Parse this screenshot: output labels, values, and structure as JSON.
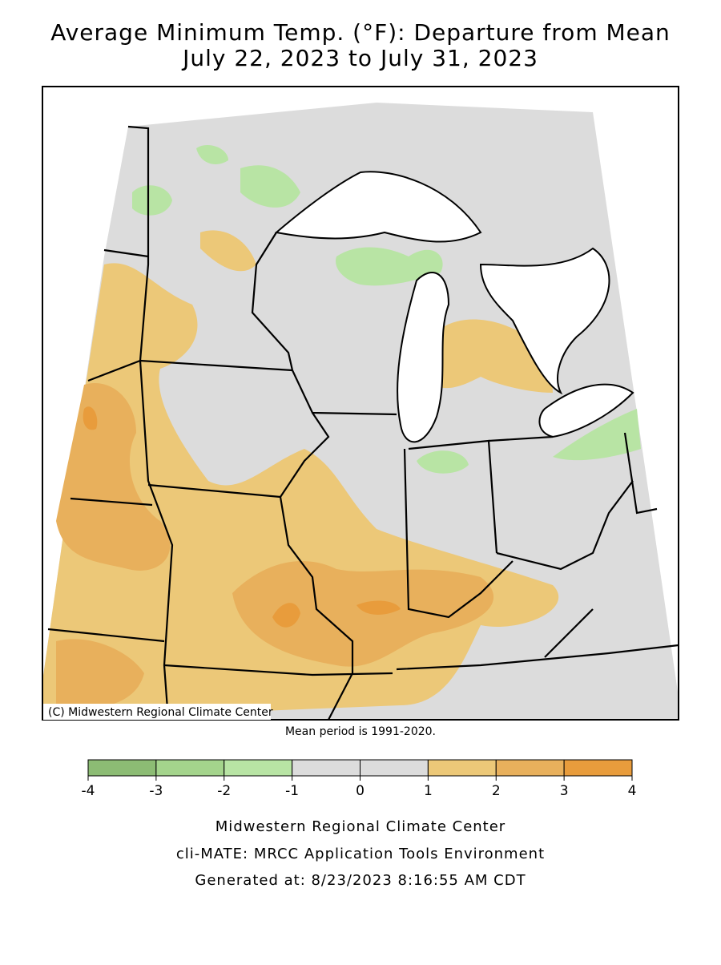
{
  "title": [
    "Average Minimum Temp. (°F): Departure from Mean",
    "July 22, 2023 to July 31, 2023"
  ],
  "copyright": "(C) Midwestern Regional Climate Center",
  "mean_period": "Mean period is 1991-2020.",
  "colorbar": {
    "ticks": [
      -4,
      -3,
      -2,
      -1,
      0,
      1,
      2,
      3,
      4
    ],
    "colors": [
      "#8cbc74",
      "#a4d48c",
      "#b8e4a4",
      "#dcdcdc",
      "#dcdcdc",
      "#ecc878",
      "#e8b05c",
      "#e89c3c"
    ]
  },
  "footer": [
    "Midwestern Regional Climate Center",
    "cli-MATE: MRCC Application Tools Environment",
    "Generated at: 8/23/2023 8:16:55 AM CDT"
  ]
}
